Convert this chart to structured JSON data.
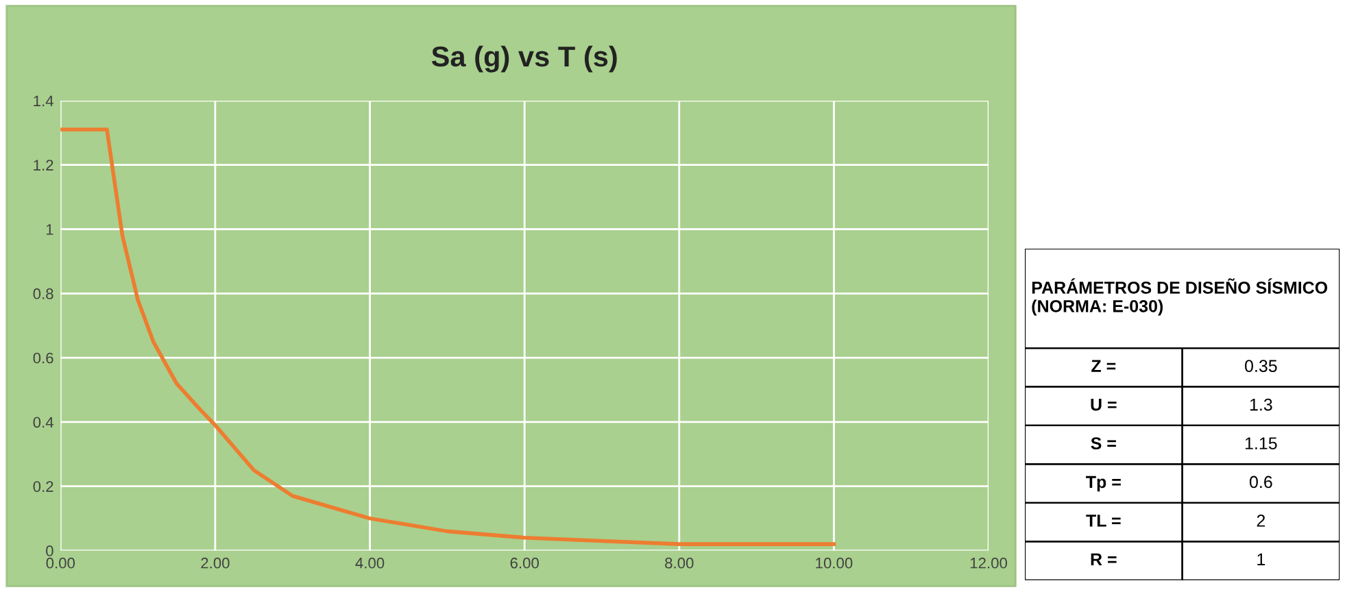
{
  "chart_data": [
    {
      "type": "line",
      "title": "Sa (g) vs T (s)",
      "x": [
        0,
        0.6,
        0.8,
        1.0,
        1.2,
        1.5,
        1.8,
        2.0,
        2.5,
        3.0,
        4.0,
        5.0,
        6.0,
        7.0,
        8.0,
        9.0,
        10.0
      ],
      "series": [
        {
          "color": "#ed7d31",
          "values": [
            1.31,
            1.31,
            0.98,
            0.78,
            0.65,
            0.52,
            0.44,
            0.39,
            0.25,
            0.17,
            0.1,
            0.06,
            0.04,
            0.03,
            0.02,
            0.02,
            0.02
          ]
        }
      ],
      "xlim": [
        0,
        12
      ],
      "ylim": [
        0,
        1.4
      ],
      "xticks": [
        {
          "value": 0,
          "label": "0.00"
        },
        {
          "value": 2,
          "label": "2.00"
        },
        {
          "value": 4,
          "label": "4.00"
        },
        {
          "value": 6,
          "label": "6.00"
        },
        {
          "value": 8,
          "label": "8.00"
        },
        {
          "value": 10,
          "label": "10.00"
        },
        {
          "value": 12,
          "label": "12.00"
        }
      ],
      "yticks": [
        0,
        0.2,
        0.4,
        0.6,
        0.8,
        1,
        1.2,
        1.4
      ],
      "grid": true,
      "marker": "none",
      "line_style": "solid"
    },
    {
      "type": "other",
      "title": "PARÁMETROS DE DISEÑO SÍSMICO (NORMA: E-030)",
      "annotations": [
        "Z =",
        "0.35",
        "U =",
        "1.3",
        "S =",
        "1.15",
        "Tp =",
        "0.6",
        "TL =",
        "2",
        "R =",
        "1"
      ]
    }
  ]
}
